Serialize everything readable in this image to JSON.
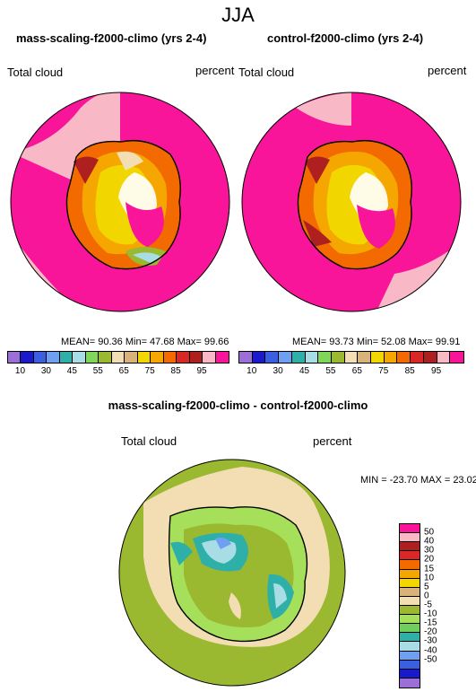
{
  "season": "JJA",
  "panels": [
    {
      "title": "mass-scaling-f2000-climo (yrs 2-4)",
      "variable": "Total cloud",
      "units": "percent",
      "stats": "MEAN= 90.36  Min= 47.68  Max= 99.66"
    },
    {
      "title": "control-f2000-climo (yrs 2-4)",
      "variable": "Total cloud",
      "units": "percent",
      "stats": "MEAN= 93.73  Min= 52.08  Max= 99.91"
    },
    {
      "title": "mass-scaling-f2000-climo - control-f2000-climo",
      "variable": "Total cloud",
      "units": "percent",
      "stats": "MIN = -23.70 MAX = 23.02"
    }
  ],
  "chart_data": [
    {
      "type": "heatmap",
      "projection": "south-polar-stereographic",
      "title": "mass-scaling-f2000-climo (yrs 2-4)",
      "mean": 90.36,
      "min": 47.68,
      "max": 99.66,
      "levels": [
        10,
        20,
        30,
        40,
        45,
        50,
        55,
        60,
        65,
        70,
        75,
        80,
        85,
        90,
        95
      ],
      "tick_labels": [
        "10",
        "30",
        "45",
        "55",
        "65",
        "75",
        "85",
        "95"
      ]
    },
    {
      "type": "heatmap",
      "projection": "south-polar-stereographic",
      "title": "control-f2000-climo (yrs 2-4)",
      "mean": 93.73,
      "min": 52.08,
      "max": 99.91,
      "levels": [
        10,
        20,
        30,
        40,
        45,
        50,
        55,
        60,
        65,
        70,
        75,
        80,
        85,
        90,
        95
      ],
      "tick_labels": [
        "10",
        "30",
        "45",
        "55",
        "65",
        "75",
        "85",
        "95"
      ]
    },
    {
      "type": "heatmap",
      "projection": "south-polar-stereographic",
      "title": "mass-scaling-f2000-climo - control-f2000-climo",
      "min": -23.7,
      "max": 23.02,
      "levels": [
        50,
        40,
        30,
        20,
        15,
        10,
        5,
        0,
        -5,
        -10,
        -15,
        -20,
        -30,
        -40,
        -50
      ]
    }
  ],
  "colors": {
    "abs_scale": [
      "#9b6fd6",
      "#1a1acc",
      "#3a5fe0",
      "#6f9ff0",
      "#2eb0a8",
      "#a8dde6",
      "#7fd65a",
      "#9ab830",
      "#f3deb3",
      "#d9b27a",
      "#f2d600",
      "#f5a600",
      "#f26a00",
      "#d92626",
      "#ae2020",
      "#f9b8c6",
      "#f9159a"
    ],
    "diff_scale": [
      "#f9159a",
      "#f9b8c6",
      "#ae2020",
      "#d92626",
      "#f26a00",
      "#f5a600",
      "#f2d600",
      "#d9b27a",
      "#f3deb3",
      "#9ab830",
      "#a6e05a",
      "#6fcf5a",
      "#2eb0a8",
      "#a8dde6",
      "#6f9ff0",
      "#3a5fe0",
      "#1a1acc",
      "#9b6fd6"
    ]
  }
}
